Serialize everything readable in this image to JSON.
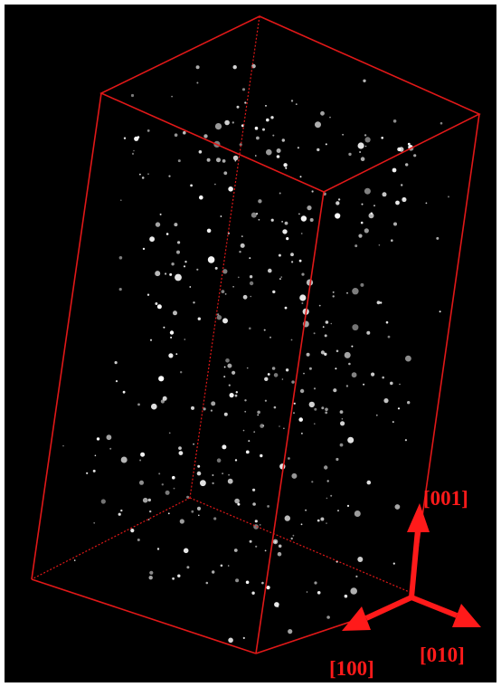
{
  "axes_labels": [
    "[001]",
    "[100]",
    "[010]"
  ]
}
